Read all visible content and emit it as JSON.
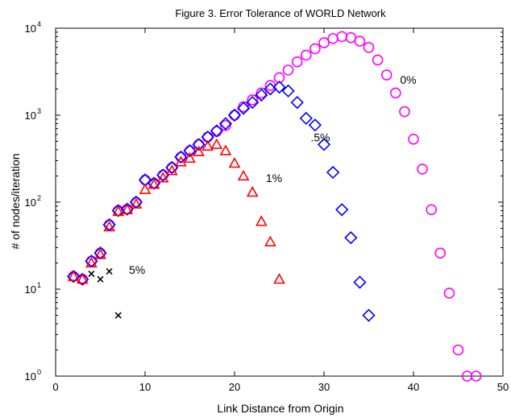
{
  "chart_data": {
    "type": "scatter",
    "title": "Figure 3.  Error Tolerance of WORLD Network",
    "xlabel": "Link Distance from Origin",
    "ylabel": "# of nodes/iteration",
    "xlim": [
      0,
      50
    ],
    "ylim": [
      1,
      10000
    ],
    "yscale": "log",
    "grid": false,
    "x_ticks": [
      0,
      10,
      20,
      30,
      40,
      50
    ],
    "y_ticks": [
      {
        "value": 1,
        "base": "10",
        "exp": "0"
      },
      {
        "value": 10,
        "base": "10",
        "exp": "1"
      },
      {
        "value": 100,
        "base": "10",
        "exp": "2"
      },
      {
        "value": 1000,
        "base": "10",
        "exp": "3"
      },
      {
        "value": 10000,
        "base": "10",
        "exp": "4"
      }
    ],
    "series": [
      {
        "label": "0%",
        "marker": "circle",
        "color": "#ff00ff",
        "label_pos": {
          "x": 38.5,
          "y": 2300
        },
        "x": [
          2,
          3,
          4,
          5,
          6,
          7,
          8,
          9,
          10,
          11,
          12,
          13,
          14,
          15,
          16,
          17,
          18,
          19,
          20,
          21,
          22,
          23,
          24,
          25,
          26,
          27,
          28,
          29,
          30,
          31,
          32,
          33,
          34,
          35,
          36,
          37,
          38,
          39,
          40,
          41,
          42,
          43,
          44,
          45,
          46,
          47
        ],
        "y": [
          14,
          13,
          21,
          26,
          55,
          80,
          83,
          100,
          180,
          165,
          205,
          250,
          330,
          390,
          460,
          560,
          650,
          760,
          1000,
          1250,
          1500,
          1800,
          2200,
          2700,
          3300,
          4100,
          4900,
          5800,
          6800,
          7600,
          8000,
          7800,
          7100,
          6000,
          4300,
          2900,
          1800,
          1100,
          530,
          240,
          82,
          26,
          9,
          2,
          1,
          1
        ]
      },
      {
        "label": ".5%",
        "marker": "diamond",
        "color": "#0000ff",
        "label_pos": {
          "x": 28.5,
          "y": 500
        },
        "x": [
          2,
          3,
          4,
          5,
          6,
          7,
          8,
          9,
          10,
          11,
          12,
          13,
          14,
          15,
          16,
          17,
          18,
          19,
          20,
          21,
          22,
          23,
          24,
          25,
          26,
          27,
          28,
          29,
          30,
          31,
          32,
          33,
          34,
          35
        ],
        "y": [
          14,
          13,
          21,
          26,
          55,
          80,
          83,
          100,
          180,
          165,
          205,
          250,
          330,
          390,
          460,
          560,
          660,
          800,
          1000,
          1200,
          1400,
          1700,
          2000,
          2100,
          1900,
          1400,
          920,
          770,
          460,
          220,
          82,
          39,
          12,
          5
        ]
      },
      {
        "label": "1%",
        "marker": "triangle",
        "color": "#ff0000",
        "label_pos": {
          "x": 23.5,
          "y": 170
        },
        "x": [
          2,
          3,
          4,
          5,
          6,
          7,
          8,
          9,
          10,
          11,
          12,
          13,
          14,
          15,
          16,
          17,
          18,
          19,
          20,
          21,
          22,
          23,
          24,
          25
        ],
        "y": [
          14,
          13,
          20,
          25,
          52,
          78,
          82,
          95,
          140,
          160,
          190,
          230,
          290,
          320,
          380,
          440,
          460,
          390,
          280,
          200,
          130,
          60,
          35,
          13
        ]
      },
      {
        "label": "5%",
        "marker": "x",
        "color": "#000000",
        "label_pos": {
          "x": 8.2,
          "y": 15
        },
        "x": [
          4,
          5,
          6,
          7
        ],
        "y": [
          15,
          13,
          16,
          5
        ]
      }
    ]
  }
}
